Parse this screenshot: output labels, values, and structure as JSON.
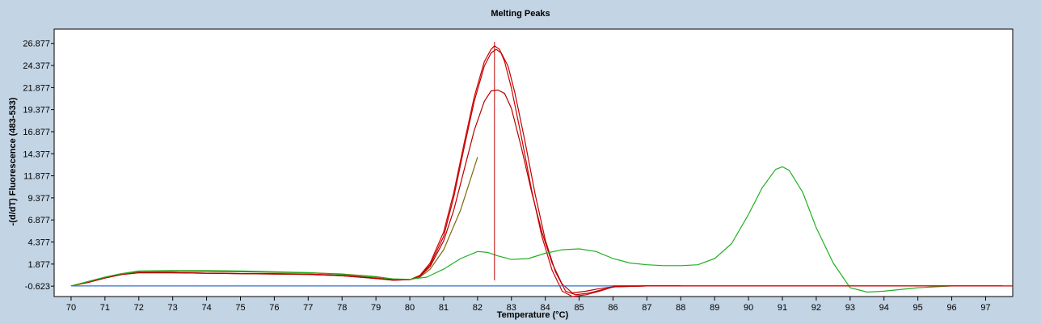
{
  "chart_data": {
    "type": "line",
    "title": "Melting Peaks",
    "xlabel": "Temperature (°C)",
    "ylabel": "-(d/dT) Fluorescence (483-533)",
    "xlim": [
      69.5,
      97.8
    ],
    "ylim": [
      -1.8,
      28.5
    ],
    "x_ticks": [
      70,
      71,
      72,
      73,
      74,
      75,
      76,
      77,
      78,
      79,
      80,
      81,
      82,
      83,
      84,
      85,
      86,
      87,
      88,
      89,
      90,
      91,
      92,
      93,
      94,
      95,
      96,
      97
    ],
    "y_ticks": [
      -0.623,
      1.877,
      4.377,
      6.877,
      9.377,
      11.877,
      14.377,
      16.877,
      19.377,
      21.877,
      24.377,
      26.877
    ],
    "y_tick_labels": [
      "-0.623",
      "1.877",
      "4.377",
      "6.877",
      "9.377",
      "11.877",
      "14.377",
      "16.877",
      "19.377",
      "21.877",
      "24.377",
      "26.877"
    ],
    "grid": false,
    "legend": "none",
    "cursor_x": 82.5,
    "series": [
      {
        "color": "#d00000",
        "x": [
          70,
          70.5,
          71,
          71.5,
          72,
          73,
          74,
          75,
          76,
          77,
          78,
          79,
          79.5,
          80,
          80.3,
          80.6,
          81,
          81.3,
          81.6,
          81.9,
          82.2,
          82.4,
          82.5,
          82.65,
          82.8,
          83,
          83.3,
          83.6,
          83.9,
          84.2,
          84.5,
          84.8,
          85.2,
          85.6,
          86,
          87,
          88
        ],
        "y": [
          -0.6,
          -0.2,
          0.3,
          0.7,
          0.9,
          0.9,
          0.85,
          0.8,
          0.8,
          0.75,
          0.6,
          0.3,
          0.1,
          0.1,
          0.6,
          2,
          5.5,
          10,
          15.5,
          20.8,
          24.8,
          26.2,
          26.6,
          26.2,
          24.8,
          21.8,
          16.2,
          10.2,
          5,
          1.2,
          -1.2,
          -1.8,
          -1.6,
          -1.2,
          -0.7,
          -0.6,
          -0.6
        ]
      },
      {
        "color": "#c00000",
        "x": [
          70,
          70.5,
          71,
          71.5,
          72,
          73,
          74,
          75,
          76,
          77,
          78,
          79,
          79.5,
          80,
          80.3,
          80.6,
          81,
          81.3,
          81.6,
          81.9,
          82.2,
          82.4,
          82.55,
          82.7,
          82.9,
          83.1,
          83.4,
          83.7,
          84,
          84.3,
          84.6,
          84.9,
          85.3,
          85.7,
          86.1,
          87,
          88
        ],
        "y": [
          -0.6,
          -0.2,
          0.3,
          0.7,
          0.9,
          0.9,
          0.85,
          0.8,
          0.75,
          0.7,
          0.55,
          0.25,
          0.05,
          0.1,
          0.5,
          1.8,
          5,
          9.5,
          15,
          20.3,
          24.3,
          25.8,
          26.2,
          25.8,
          24.3,
          21.3,
          15.8,
          9.8,
          4.6,
          1,
          -1.2,
          -1.6,
          -1.4,
          -1,
          -0.65,
          -0.6,
          -0.6
        ]
      },
      {
        "color": "#b80000",
        "x": [
          70,
          70.5,
          71,
          71.5,
          72,
          73,
          74,
          75,
          76,
          77,
          78,
          79,
          79.5,
          80,
          80.3,
          80.6,
          81,
          81.3,
          81.6,
          81.9,
          82.2,
          82.4,
          82.6,
          82.8,
          83,
          83.3,
          83.6,
          83.9,
          84.2,
          84.5,
          84.8,
          85.2,
          85.6,
          86,
          87,
          88
        ],
        "y": [
          -0.6,
          -0.15,
          0.3,
          0.7,
          0.9,
          0.9,
          0.85,
          0.8,
          0.75,
          0.7,
          0.55,
          0.25,
          0.05,
          0.1,
          0.5,
          1.6,
          4.5,
          8,
          12.5,
          17,
          20.3,
          21.5,
          21.6,
          21.2,
          19.5,
          15,
          10,
          5.5,
          2,
          -0.4,
          -1.4,
          -1.2,
          -0.9,
          -0.7,
          -0.6,
          -0.6
        ]
      },
      {
        "color": "#7a6a10",
        "x": [
          70,
          70.5,
          71,
          71.5,
          72,
          73,
          74,
          75,
          76,
          77,
          78,
          79,
          79.5,
          80,
          80.3,
          80.6,
          81,
          81.5,
          82
        ],
        "y": [
          -0.6,
          -0.1,
          0.4,
          0.8,
          1.0,
          1.05,
          1.05,
          1.0,
          0.95,
          0.9,
          0.75,
          0.45,
          0.2,
          0.1,
          0.4,
          1.3,
          3.5,
          8,
          14
        ]
      },
      {
        "color": "#20b020",
        "x": [
          70,
          70.5,
          71,
          71.5,
          72,
          73,
          74,
          75,
          76,
          77,
          78,
          79,
          79.5,
          80,
          80.5,
          81,
          81.5,
          82,
          82.3,
          82.6,
          83,
          83.5,
          84,
          84.5,
          85,
          85.5,
          86,
          86.5,
          87,
          87.5,
          88,
          88.5,
          89,
          89.5,
          90,
          90.4,
          90.8,
          91,
          91.2,
          91.6,
          92,
          92.5,
          93,
          93.5,
          94,
          95,
          96,
          97.5
        ],
        "y": [
          -0.6,
          -0.1,
          0.4,
          0.8,
          1.1,
          1.15,
          1.15,
          1.1,
          1.0,
          0.9,
          0.7,
          0.4,
          0.2,
          0.15,
          0.4,
          1.3,
          2.5,
          3.3,
          3.2,
          2.8,
          2.4,
          2.5,
          3.1,
          3.5,
          3.6,
          3.3,
          2.5,
          2.0,
          1.8,
          1.7,
          1.7,
          1.8,
          2.5,
          4.2,
          7.5,
          10.5,
          12.6,
          12.9,
          12.5,
          10,
          6,
          2,
          -0.8,
          -1.3,
          -1.2,
          -0.8,
          -0.6,
          -0.6
        ]
      },
      {
        "color": "#3070d0",
        "x": [
          70,
          72,
          75,
          78,
          80,
          82,
          84,
          86,
          88,
          90,
          92,
          94,
          96,
          97.5
        ],
        "y": [
          -0.6,
          -0.6,
          -0.6,
          -0.6,
          -0.6,
          -0.6,
          -0.6,
          -0.6,
          -0.6,
          -0.6,
          -0.6,
          -0.6,
          -0.6,
          -0.6
        ]
      },
      {
        "color": "#d00000",
        "x": [
          86,
          88,
          90,
          92,
          94,
          96,
          97.8
        ],
        "y": [
          -0.6,
          -0.6,
          -0.6,
          -0.6,
          -0.6,
          -0.6,
          -0.6
        ]
      }
    ]
  }
}
